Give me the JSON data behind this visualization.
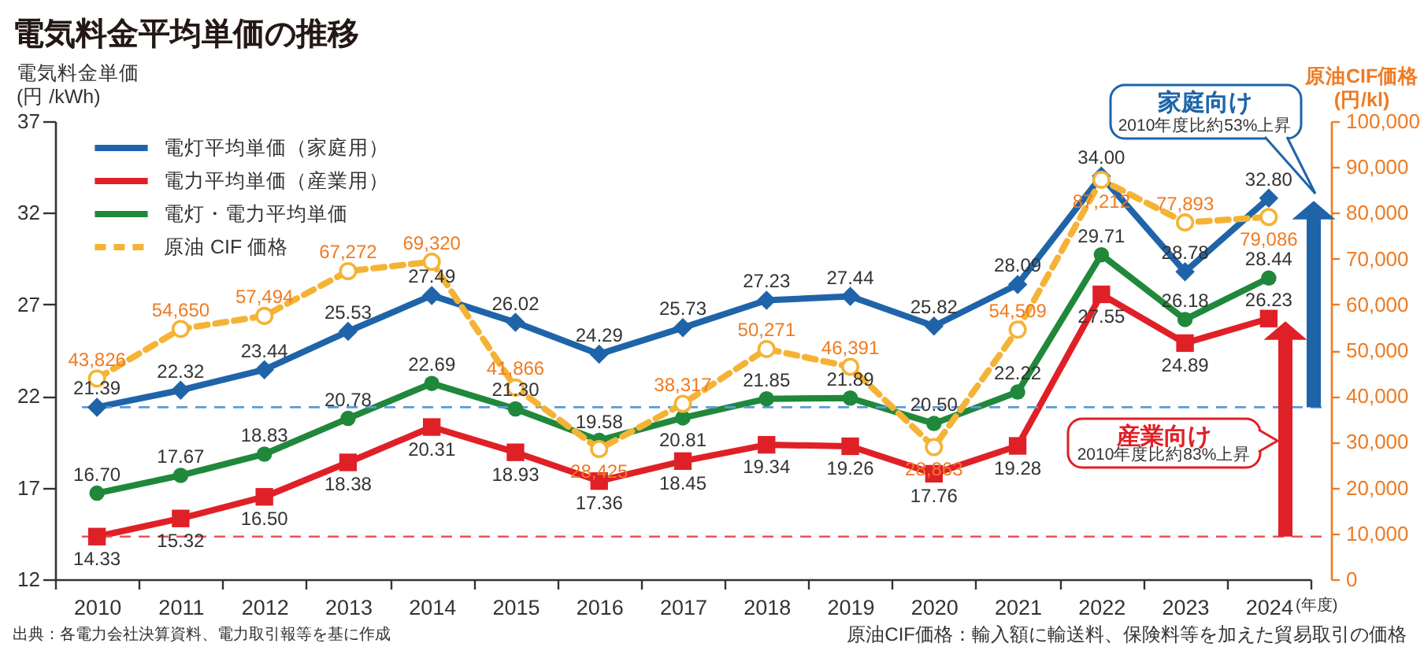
{
  "chart_data": {
    "type": "line",
    "title": "電気料金平均単価の推移",
    "ylabel": "電気料金単価\n(円 /kWh)",
    "y2label": "原油CIF価格\n(円/kl)",
    "xlabel": "(年度)",
    "categories": [
      "2010",
      "2011",
      "2012",
      "2013",
      "2014",
      "2015",
      "2016",
      "2017",
      "2018",
      "2019",
      "2020",
      "2021",
      "2022",
      "2023",
      "2024"
    ],
    "series": [
      {
        "name": "電灯平均単価（家庭用）",
        "color": "#1f64a9",
        "marker": "diamond",
        "line_style": "solid",
        "values": [
          21.39,
          22.32,
          23.44,
          25.53,
          27.49,
          26.02,
          24.29,
          25.73,
          27.23,
          27.44,
          25.82,
          28.09,
          34.0,
          28.78,
          32.8
        ],
        "value_labels": [
          "21.39",
          "22.32",
          "23.44",
          "25.53",
          "27.49",
          "26.02",
          "24.29",
          "25.73",
          "27.23",
          "27.44",
          "25.82",
          "28.09",
          "34.00",
          "28.78",
          "32.80"
        ]
      },
      {
        "name": "電力平均単価（産業用）",
        "color": "#e02027",
        "marker": "square",
        "line_style": "solid",
        "values": [
          14.33,
          15.32,
          16.5,
          18.38,
          20.31,
          18.93,
          17.36,
          18.45,
          19.34,
          19.26,
          17.76,
          19.28,
          27.55,
          24.89,
          26.23
        ],
        "value_labels": [
          "14.33",
          "15.32",
          "16.50",
          "18.38",
          "20.31",
          "18.93",
          "17.36",
          "18.45",
          "19.34",
          "19.26",
          "17.76",
          "19.28",
          "27.55",
          "24.89",
          "26.23"
        ]
      },
      {
        "name": "電灯・電力平均単価",
        "color": "#20883b",
        "marker": "circle",
        "line_style": "solid",
        "values": [
          16.7,
          17.67,
          18.83,
          20.78,
          22.69,
          21.3,
          19.58,
          20.81,
          21.85,
          21.89,
          20.5,
          22.22,
          29.71,
          26.18,
          28.44
        ],
        "value_labels": [
          "16.70",
          "17.67",
          "18.83",
          "20.78",
          "22.69",
          "21.30",
          "19.58",
          "20.81",
          "21.85",
          "21.89",
          "20.50",
          "22.22",
          "29.71",
          "26.18",
          "28.44"
        ]
      },
      {
        "name": "原油 CIF 価格",
        "color": "#f5b335",
        "marker": "circle",
        "line_style": "dashed",
        "axis": "y2",
        "values": [
          43826,
          54650,
          57494,
          67272,
          69320,
          41866,
          28425,
          38317,
          50271,
          46391,
          28863,
          54509,
          87212,
          77893,
          79086
        ],
        "value_labels": [
          "43,826",
          "54,650",
          "57,494",
          "67,272",
          "69,320",
          "41,866",
          "28,425",
          "38,317",
          "50,271",
          "46,391",
          "28,863",
          "54,509",
          "87,212",
          "77,893",
          "79,086"
        ]
      }
    ],
    "ylim": [
      12,
      37
    ],
    "yticks": [
      12,
      17,
      22,
      27,
      32,
      37
    ],
    "y2lim": [
      0,
      100000
    ],
    "y2ticks": [
      0,
      {
        "value": 10000,
        "label": "10,000"
      },
      {
        "value": 20000,
        "label": "20,000"
      },
      {
        "value": 30000,
        "label": "30,000"
      },
      {
        "value": 40000,
        "label": "40,000"
      },
      {
        "value": 50000,
        "label": "50,000"
      },
      {
        "value": 60000,
        "label": "60,000"
      },
      {
        "value": 70000,
        "label": "70,000"
      },
      {
        "value": 80000,
        "label": "80,000"
      },
      {
        "value": 90000,
        "label": "90,000"
      },
      {
        "value": 100000,
        "label": "100,000"
      }
    ],
    "ref_lines": [
      {
        "axis": "y",
        "value": 21.39,
        "color": "#5b9bd5",
        "line_style": "dashed"
      },
      {
        "axis": "y",
        "value": 14.33,
        "color": "#e8545a",
        "line_style": "dashed"
      }
    ],
    "legend": "top left",
    "annotations": [
      "家庭向け\n2010年度比約53%上昇",
      "産業向け\n2010年度比約83%上昇",
      "出典：各電力会社決算資料、電力取引報等を基に作成",
      "原油CIF価格：輸入額に輸送料、保険料等を加えた貿易取引の価格"
    ]
  }
}
